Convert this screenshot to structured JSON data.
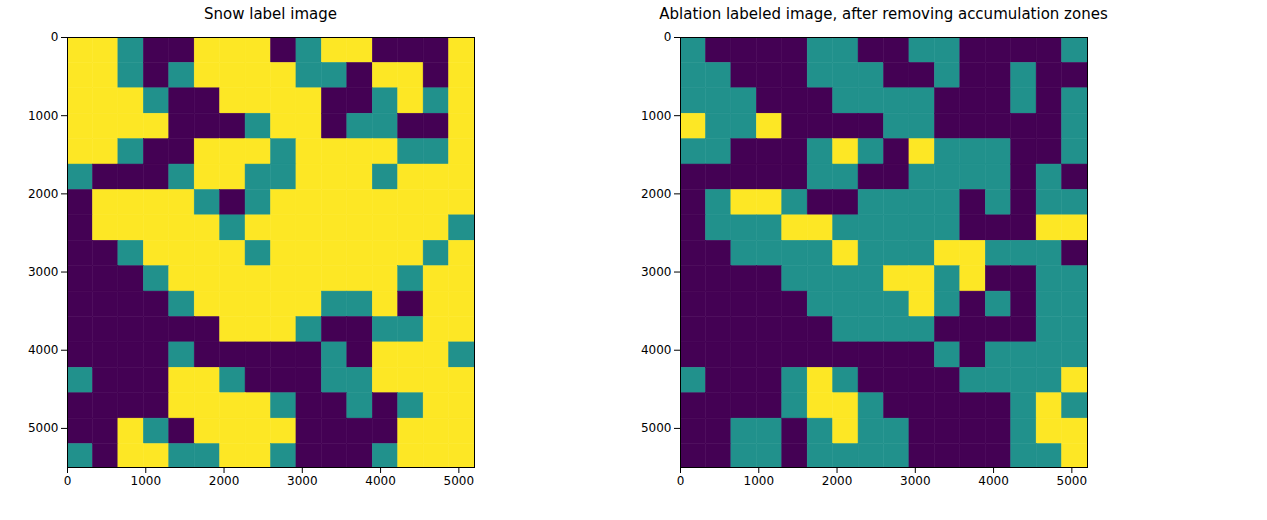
{
  "chart_data": [
    {
      "type": "heatmap",
      "title": "Snow label image",
      "xlim": [
        0,
        5200
      ],
      "ylim": [
        5500,
        0
      ],
      "xticks": [
        0,
        1000,
        2000,
        3000,
        4000,
        5000
      ],
      "yticks": [
        0,
        1000,
        2000,
        3000,
        4000,
        5000
      ],
      "cell_size": 325,
      "levels": [
        0,
        1,
        2
      ],
      "colors": [
        "#440154",
        "#21918c",
        "#fde725"
      ],
      "cells": [
        [
          2,
          2,
          1,
          0,
          0,
          2,
          2,
          2,
          0,
          1,
          2,
          2,
          0,
          0,
          0,
          2
        ],
        [
          2,
          2,
          1,
          0,
          1,
          2,
          2,
          2,
          2,
          1,
          1,
          0,
          2,
          2,
          0,
          2
        ],
        [
          2,
          2,
          2,
          1,
          0,
          0,
          2,
          2,
          2,
          2,
          0,
          0,
          1,
          2,
          1,
          2
        ],
        [
          2,
          2,
          2,
          2,
          0,
          0,
          0,
          1,
          2,
          2,
          0,
          1,
          1,
          0,
          0,
          2
        ],
        [
          2,
          2,
          1,
          0,
          0,
          2,
          2,
          2,
          1,
          2,
          2,
          2,
          2,
          1,
          1,
          2
        ],
        [
          1,
          0,
          0,
          0,
          1,
          2,
          2,
          1,
          1,
          2,
          2,
          2,
          1,
          2,
          2,
          2
        ],
        [
          0,
          2,
          2,
          2,
          2,
          1,
          0,
          1,
          2,
          2,
          2,
          2,
          2,
          2,
          2,
          2
        ],
        [
          0,
          2,
          2,
          2,
          2,
          2,
          1,
          2,
          2,
          2,
          2,
          2,
          2,
          2,
          2,
          1
        ],
        [
          0,
          0,
          1,
          2,
          2,
          2,
          2,
          1,
          2,
          2,
          2,
          2,
          2,
          2,
          1,
          2
        ],
        [
          0,
          0,
          0,
          1,
          2,
          2,
          2,
          2,
          2,
          2,
          2,
          2,
          2,
          1,
          2,
          2
        ],
        [
          0,
          0,
          0,
          0,
          1,
          2,
          2,
          2,
          2,
          2,
          1,
          1,
          2,
          0,
          2,
          2
        ],
        [
          0,
          0,
          0,
          0,
          0,
          0,
          2,
          2,
          2,
          1,
          0,
          0,
          1,
          1,
          2,
          2
        ],
        [
          0,
          0,
          0,
          0,
          1,
          0,
          0,
          0,
          0,
          0,
          1,
          0,
          2,
          2,
          2,
          1
        ],
        [
          1,
          0,
          0,
          0,
          2,
          2,
          1,
          0,
          0,
          0,
          1,
          1,
          2,
          2,
          2,
          2
        ],
        [
          0,
          0,
          0,
          0,
          2,
          2,
          2,
          2,
          1,
          0,
          0,
          1,
          0,
          1,
          2,
          2
        ],
        [
          0,
          0,
          2,
          1,
          0,
          2,
          2,
          2,
          2,
          0,
          0,
          0,
          0,
          2,
          2,
          2
        ],
        [
          1,
          0,
          2,
          2,
          1,
          1,
          2,
          2,
          1,
          0,
          0,
          0,
          1,
          2,
          2,
          2
        ]
      ]
    },
    {
      "type": "heatmap",
      "title": "Ablation labeled image, after removing accumulation zones",
      "xlim": [
        0,
        5200
      ],
      "ylim": [
        5500,
        0
      ],
      "xticks": [
        0,
        1000,
        2000,
        3000,
        4000,
        5000
      ],
      "yticks": [
        0,
        1000,
        2000,
        3000,
        4000,
        5000
      ],
      "cell_size": 325,
      "levels": [
        0,
        1,
        2
      ],
      "colors": [
        "#440154",
        "#21918c",
        "#fde725"
      ],
      "cells": [
        [
          1,
          0,
          0,
          0,
          0,
          1,
          1,
          0,
          0,
          1,
          1,
          0,
          0,
          0,
          0,
          1
        ],
        [
          1,
          1,
          0,
          0,
          0,
          1,
          1,
          1,
          0,
          0,
          1,
          0,
          0,
          1,
          0,
          0
        ],
        [
          1,
          1,
          1,
          0,
          0,
          0,
          1,
          1,
          1,
          1,
          0,
          0,
          0,
          1,
          0,
          1
        ],
        [
          2,
          1,
          1,
          2,
          0,
          0,
          0,
          0,
          1,
          1,
          0,
          0,
          0,
          0,
          0,
          1
        ],
        [
          1,
          1,
          0,
          0,
          0,
          1,
          2,
          1,
          0,
          2,
          1,
          1,
          1,
          0,
          0,
          1
        ],
        [
          0,
          0,
          0,
          0,
          0,
          1,
          1,
          0,
          0,
          1,
          1,
          1,
          1,
          0,
          1,
          0
        ],
        [
          0,
          1,
          2,
          2,
          1,
          0,
          0,
          1,
          1,
          1,
          1,
          0,
          1,
          0,
          1,
          1
        ],
        [
          0,
          1,
          1,
          1,
          2,
          2,
          1,
          1,
          1,
          1,
          1,
          0,
          0,
          0,
          2,
          2
        ],
        [
          0,
          0,
          1,
          1,
          1,
          1,
          2,
          1,
          1,
          1,
          2,
          2,
          1,
          1,
          1,
          0
        ],
        [
          0,
          0,
          0,
          0,
          1,
          1,
          1,
          1,
          2,
          2,
          1,
          2,
          0,
          0,
          1,
          1
        ],
        [
          0,
          0,
          0,
          0,
          0,
          1,
          1,
          1,
          1,
          2,
          1,
          0,
          1,
          0,
          1,
          1
        ],
        [
          0,
          0,
          0,
          0,
          0,
          0,
          1,
          1,
          1,
          1,
          0,
          0,
          0,
          0,
          1,
          1
        ],
        [
          0,
          0,
          0,
          0,
          0,
          0,
          0,
          0,
          0,
          0,
          1,
          0,
          1,
          1,
          1,
          1
        ],
        [
          1,
          0,
          0,
          0,
          1,
          2,
          1,
          0,
          0,
          0,
          0,
          1,
          1,
          1,
          1,
          2
        ],
        [
          0,
          0,
          0,
          0,
          1,
          2,
          2,
          1,
          0,
          0,
          0,
          0,
          0,
          1,
          2,
          1
        ],
        [
          0,
          0,
          1,
          1,
          0,
          1,
          2,
          1,
          1,
          0,
          0,
          0,
          0,
          1,
          2,
          2
        ],
        [
          0,
          0,
          1,
          1,
          0,
          1,
          1,
          1,
          1,
          0,
          0,
          0,
          0,
          1,
          1,
          2
        ]
      ]
    }
  ]
}
